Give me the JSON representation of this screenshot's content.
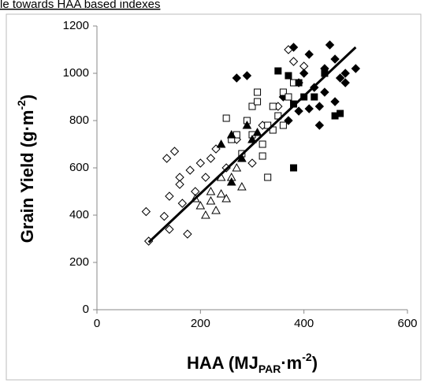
{
  "chart_data": {
    "type": "scatter",
    "title": "le towards HAA based indexes",
    "y_label": [
      "Grain Yield (g·m",
      "-2",
      ")"
    ],
    "x_label": [
      "HAA (MJ",
      "PAR",
      "·m",
      "-2",
      ")"
    ],
    "xlim": [
      0,
      600
    ],
    "xticks": [
      0,
      200,
      400,
      600
    ],
    "ylim": [
      0,
      1200
    ],
    "yticks": [
      0,
      200,
      400,
      600,
      800,
      1000,
      1200
    ],
    "grid": false,
    "series": [
      {
        "marker": "diamond",
        "filled": false,
        "color": "#000000",
        "x": [
          95,
          100,
          130,
          135,
          140,
          150,
          160,
          165,
          175,
          180,
          190,
          200,
          210,
          220,
          230,
          250,
          270,
          300,
          320,
          350,
          370,
          380,
          400,
          140,
          160
        ],
        "values": [
          415,
          290,
          395,
          640,
          480,
          670,
          560,
          450,
          320,
          590,
          500,
          620,
          560,
          640,
          680,
          600,
          720,
          620,
          780,
          860,
          1100,
          1050,
          1030,
          340,
          530
        ]
      },
      {
        "marker": "diamond",
        "filled": true,
        "color": "#000000",
        "x": [
          270,
          290,
          360,
          380,
          390,
          400,
          410,
          420,
          430,
          440,
          450,
          460,
          470,
          480,
          500,
          370,
          410,
          440,
          460,
          480,
          430,
          390
        ],
        "values": [
          980,
          990,
          900,
          1110,
          960,
          1000,
          1080,
          940,
          860,
          1020,
          1120,
          880,
          980,
          960,
          1020,
          800,
          850,
          920,
          1060,
          1000,
          780,
          840
        ]
      },
      {
        "marker": "square",
        "filled": false,
        "color": "#000000",
        "x": [
          250,
          260,
          280,
          300,
          310,
          320,
          330,
          340,
          350,
          360,
          370,
          380,
          290,
          310,
          330,
          300,
          340,
          360,
          270,
          320
        ],
        "values": [
          810,
          720,
          660,
          860,
          880,
          700,
          560,
          760,
          820,
          920,
          900,
          960,
          800,
          920,
          780,
          740,
          860,
          780,
          740,
          650
        ]
      },
      {
        "marker": "square",
        "filled": true,
        "color": "#000000",
        "x": [
          350,
          370,
          380,
          390,
          400,
          420,
          440,
          460,
          470,
          380
        ],
        "values": [
          1010,
          990,
          870,
          960,
          900,
          900,
          1000,
          820,
          830,
          600
        ]
      },
      {
        "marker": "triangle",
        "filled": false,
        "color": "#000000",
        "x": [
          190,
          200,
          210,
          220,
          230,
          240,
          250,
          260,
          270,
          280,
          240,
          220
        ],
        "values": [
          470,
          440,
          400,
          460,
          420,
          490,
          470,
          560,
          600,
          520,
          560,
          500
        ]
      },
      {
        "marker": "triangle",
        "filled": true,
        "color": "#000000",
        "x": [
          240,
          260,
          280,
          290,
          300,
          310,
          260
        ],
        "values": [
          700,
          740,
          640,
          780,
          720,
          750,
          540
        ]
      }
    ],
    "trendline": {
      "color": "#000000",
      "x": [
        100,
        500
      ],
      "y": [
        285,
        1110
      ]
    }
  }
}
